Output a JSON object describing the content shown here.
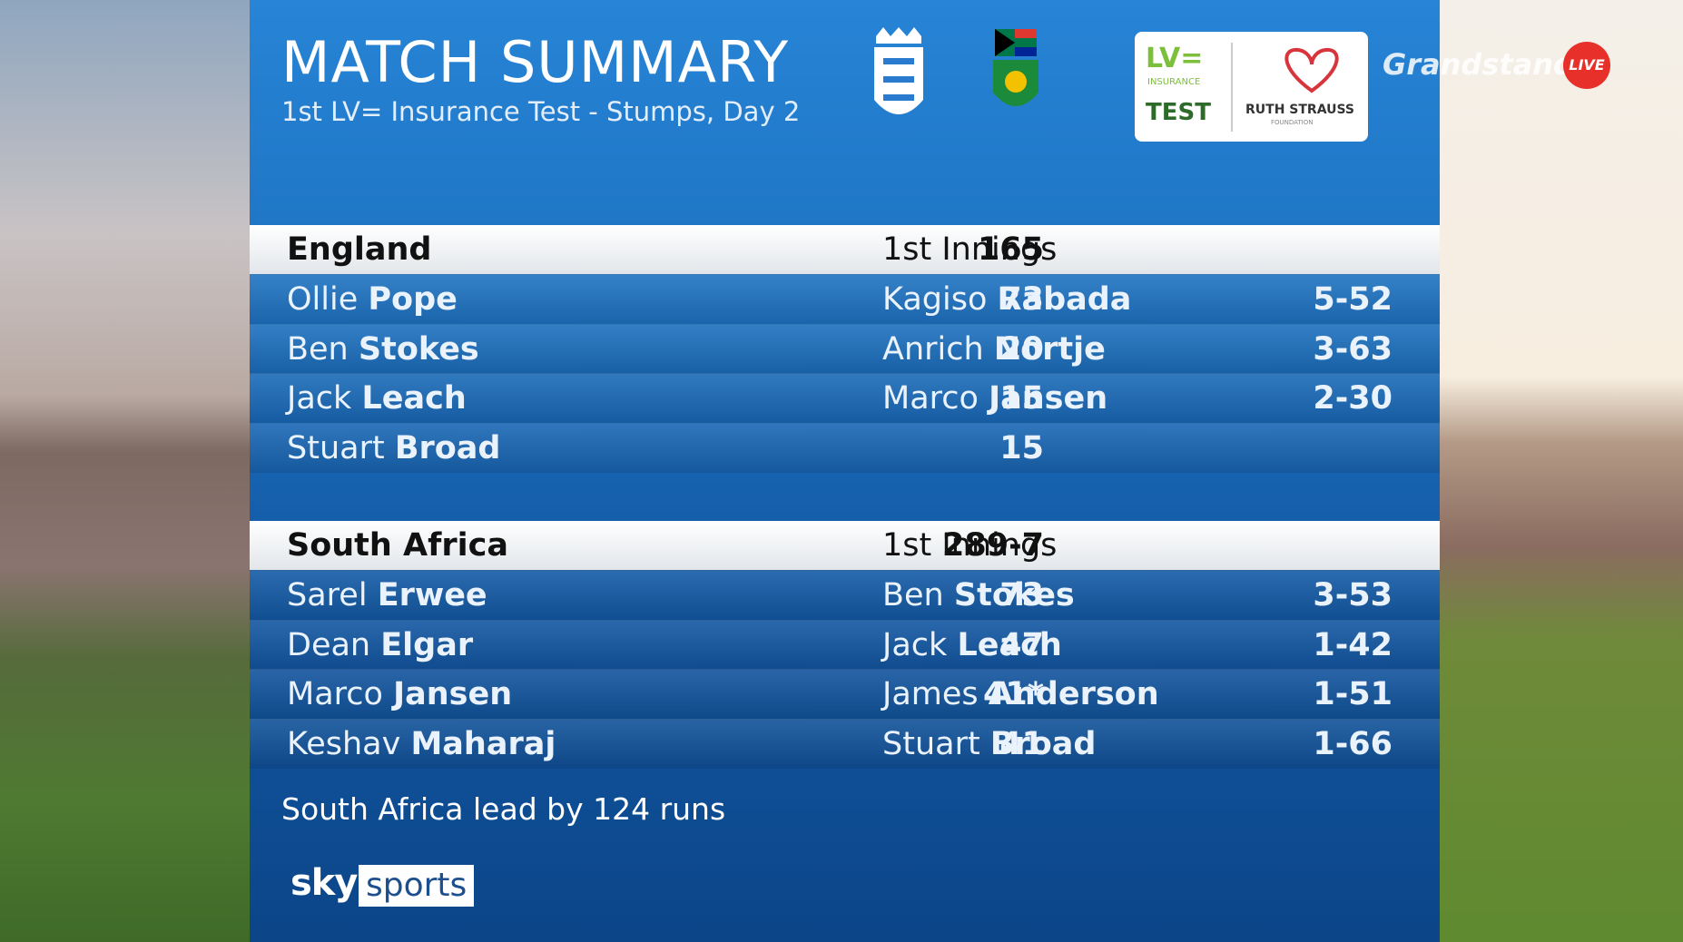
{
  "header": {
    "title": "MATCH SUMMARY",
    "subtitle": "1st LV= Insurance Test - Stumps, Day 2"
  },
  "sponsor": {
    "brand": "LV=",
    "line1": "INSURANCE",
    "line2": "TEST",
    "charity": "RUTH STRAUSS",
    "charity_sub": "FOUNDATION"
  },
  "channel": {
    "name": "Grandstand",
    "live": "LIVE"
  },
  "innings": [
    {
      "team": "England",
      "score": "165",
      "label": "1st Innings",
      "batters": [
        [
          "Ollie",
          "Pope",
          "73"
        ],
        [
          "Ben",
          "Stokes",
          "20"
        ],
        [
          "Jack",
          "Leach",
          "15"
        ],
        [
          "Stuart",
          "Broad",
          "15"
        ]
      ],
      "bowlers": [
        [
          "Kagiso",
          "Rabada",
          "5-52"
        ],
        [
          "Anrich",
          "Nortje",
          "3-63"
        ],
        [
          "Marco",
          "Jansen",
          "2-30"
        ]
      ]
    },
    {
      "team": "South Africa",
      "score": "289-7",
      "label": "1st Innings",
      "batters": [
        [
          "Sarel",
          "Erwee",
          "73"
        ],
        [
          "Dean",
          "Elgar",
          "47"
        ],
        [
          "Marco",
          "Jansen",
          "41*"
        ],
        [
          "Keshav",
          "Maharaj",
          "41"
        ]
      ],
      "bowlers": [
        [
          "Ben",
          "Stokes",
          "3-53"
        ],
        [
          "Jack",
          "Leach",
          "1-42"
        ],
        [
          "James",
          "Anderson",
          "1-51"
        ],
        [
          "Stuart",
          "Broad",
          "1-66"
        ]
      ]
    }
  ],
  "footer": {
    "note": "South Africa lead by 124 runs",
    "brand1": "sky",
    "brand2": "sports"
  }
}
